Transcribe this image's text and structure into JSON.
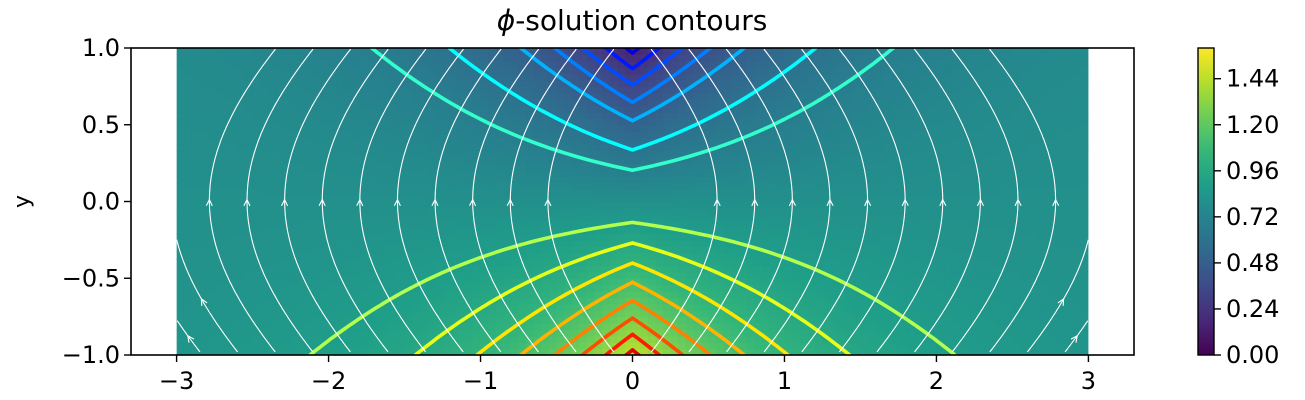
{
  "chart_data": {
    "type": "heatmap",
    "title_prefix": "ϕ",
    "title_rest": "-solution contours",
    "title": "ϕ-solution contours",
    "xlabel": "",
    "ylabel": "y",
    "xlim": [
      -3.3,
      3.3
    ],
    "ylim": [
      -1.0,
      1.0
    ],
    "data_extent": {
      "x": [
        -3,
        3
      ],
      "y": [
        -1,
        1
      ]
    },
    "xticks": [
      {
        "value": -3,
        "label": "−3"
      },
      {
        "value": -2,
        "label": "−2"
      },
      {
        "value": -1,
        "label": "−1"
      },
      {
        "value": 0,
        "label": "0"
      },
      {
        "value": 1,
        "label": "1"
      },
      {
        "value": 2,
        "label": "2"
      },
      {
        "value": 3,
        "label": "3"
      }
    ],
    "yticks": [
      {
        "value": 1.0,
        "label": "1.0"
      },
      {
        "value": 0.5,
        "label": "0.5"
      },
      {
        "value": 0.0,
        "label": "0.0"
      },
      {
        "value": -0.5,
        "label": "−0.5"
      },
      {
        "value": -1.0,
        "label": "−1.0"
      }
    ],
    "colorbar": {
      "colormap": "viridis",
      "range": [
        0.0,
        1.6
      ],
      "ticks": [
        {
          "value": 0.0,
          "label": "0.00"
        },
        {
          "value": 0.24,
          "label": "0.24"
        },
        {
          "value": 0.48,
          "label": "0.48"
        },
        {
          "value": 0.72,
          "label": "0.72"
        },
        {
          "value": 0.96,
          "label": "0.96"
        },
        {
          "value": 1.2,
          "label": "1.20"
        },
        {
          "value": 1.44,
          "label": "1.44"
        }
      ]
    },
    "contour_levels": [
      0.08,
      0.16,
      0.24,
      0.32,
      0.4,
      0.48,
      0.6,
      0.68,
      0.88,
      0.96,
      1.04,
      1.12,
      1.2,
      1.28,
      1.36,
      1.44,
      1.52
    ],
    "contour_colormap": "jet",
    "streamlines": {
      "color": "#ffffff",
      "count": 24
    },
    "grid": false
  }
}
